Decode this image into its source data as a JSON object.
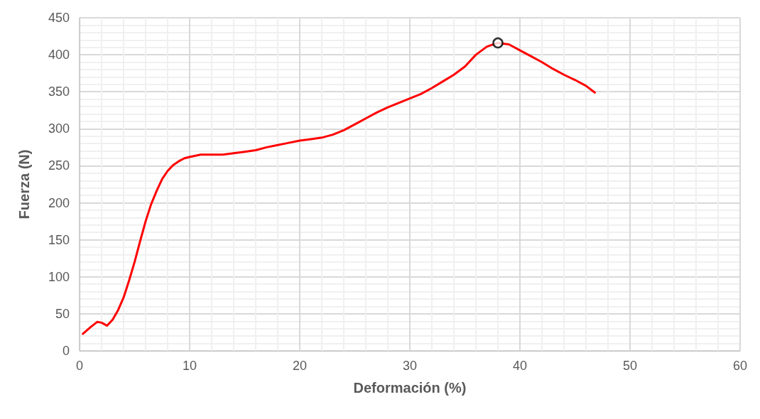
{
  "chart_data": {
    "type": "line",
    "xlabel": "Deformación (%)",
    "ylabel": "Fuerza (N)",
    "xlim": [
      0,
      60
    ],
    "xticks": [
      0,
      10,
      20,
      30,
      40,
      50,
      60
    ],
    "ylim": [
      0,
      450
    ],
    "yticks": [
      0,
      50,
      100,
      150,
      200,
      250,
      300,
      350,
      400,
      450
    ],
    "grid": true,
    "line_style": "solid",
    "marker": "none",
    "series": [
      {
        "color": "#ff0000",
        "x": [
          0.3,
          1,
          1.6,
          2,
          2.5,
          3,
          3.5,
          4,
          4.5,
          5,
          5.5,
          6,
          6.5,
          7,
          7.5,
          8,
          8.5,
          9,
          9.5,
          10,
          11,
          12,
          13,
          14,
          15,
          16,
          17,
          18,
          19,
          20,
          21,
          22,
          23,
          24,
          25,
          26,
          27,
          28,
          29,
          30,
          31,
          32,
          33,
          34,
          35,
          36,
          37,
          38,
          39,
          40,
          41,
          42,
          43,
          44,
          45,
          46,
          46.8
        ],
        "values": [
          23,
          32,
          39,
          38,
          34,
          42,
          55,
          72,
          95,
          120,
          148,
          175,
          198,
          216,
          232,
          243,
          251,
          256,
          260,
          262,
          265,
          265,
          265,
          267,
          269,
          271,
          275,
          278,
          281,
          284,
          286,
          288,
          292,
          298,
          306,
          314,
          322,
          329,
          335,
          341,
          347,
          355,
          364,
          373,
          384,
          400,
          411,
          416,
          414,
          406,
          398,
          390,
          381,
          373,
          366,
          358,
          349
        ]
      },
      {
        "type": "scatter",
        "marker": "circle",
        "color": "#000000",
        "x": [
          38
        ],
        "values": [
          416
        ]
      }
    ]
  }
}
